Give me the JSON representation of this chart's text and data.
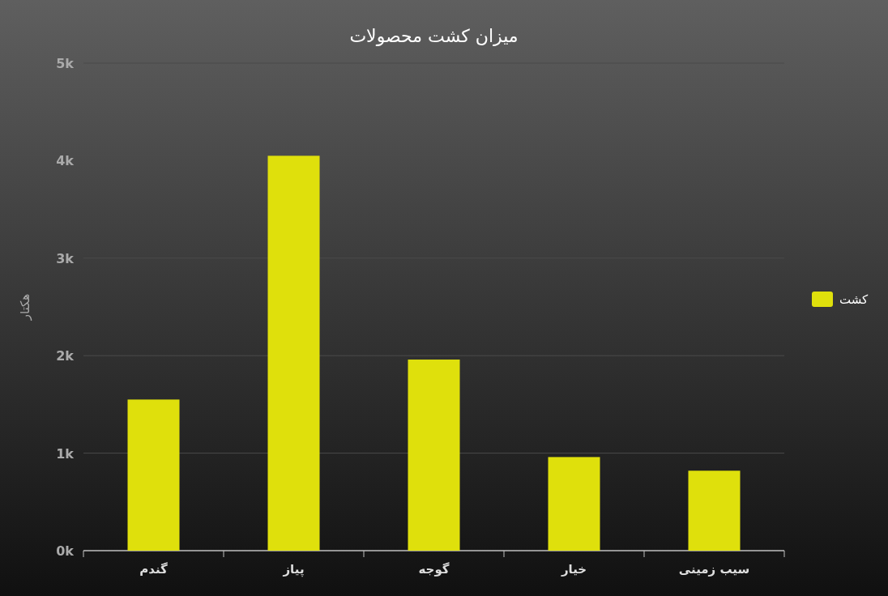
{
  "chart_data": {
    "type": "bar",
    "title": "میزان کشت محصولات",
    "ylabel": "هکتار",
    "categories": [
      "گندم",
      "پیاز",
      "گوجه",
      "خیار",
      "سیب زمینی"
    ],
    "series": [
      {
        "name": "کشت",
        "color": "#dfe00c",
        "values": [
          1550,
          4050,
          1960,
          960,
          820
        ]
      }
    ],
    "ylim": [
      0,
      5000
    ],
    "yticks": [
      {
        "value": 0,
        "label": "0k"
      },
      {
        "value": 1000,
        "label": "1k"
      },
      {
        "value": 2000,
        "label": "2k"
      },
      {
        "value": 3000,
        "label": "3k"
      },
      {
        "value": 4000,
        "label": "4k"
      },
      {
        "value": 5000,
        "label": "5k"
      }
    ],
    "grid": "y",
    "legend": "right"
  }
}
